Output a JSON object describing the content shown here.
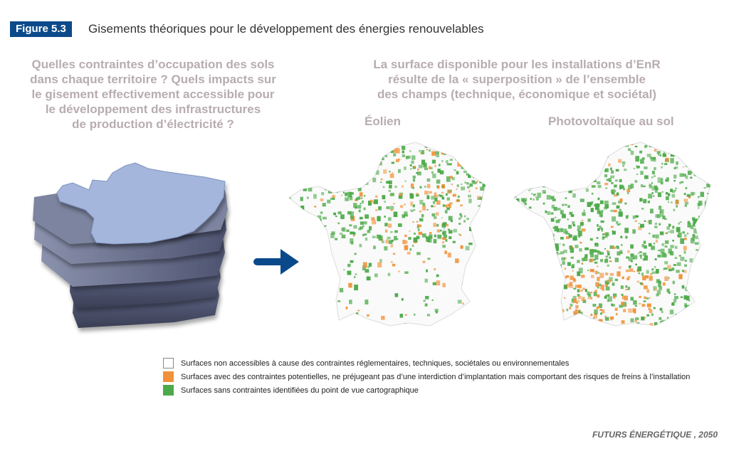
{
  "figure": {
    "badge": "Figure 5.3",
    "title": "Gisements théoriques pour le développement des énergies renouvelables"
  },
  "left_question": [
    "Quelles contraintes d’occupation des sols",
    "dans chaque territoire ? Quels impacts sur",
    "le gisement effectivement accessible pour",
    "le développement des infrastructures",
    "de production d’électricité ?"
  ],
  "right_statement": [
    "La surface disponible pour les installations d’EnR",
    "résulte de la « superposition » de l’ensemble",
    "des champs (technique, économique et sociétal)"
  ],
  "maps": {
    "eolien": {
      "label": "Éolien",
      "green_share": 0.22,
      "orange_share": 0.08
    },
    "pv": {
      "label": "Photovoltaïque au sol",
      "green_share": 0.48,
      "orange_share": 0.08
    }
  },
  "legend": [
    {
      "color": "#ffffff",
      "text": "Surfaces non accessibles à cause des contraintes réglementaires, techniques, sociétales ou environnementales"
    },
    {
      "color": "#f0923a",
      "text": "Surfaces avec des contraintes potentielles, ne préjugeant pas d’une interdiction d’implantation mais comportant des risques de freins à l’installation"
    },
    {
      "color": "#4caa48",
      "text": "Surfaces sans contraintes identifiées du point de vue cartographique"
    }
  ],
  "source": "FUTURS ÉNERGÉTIQUE , 2050",
  "colors": {
    "badge": "#0b4a8a",
    "arrow": "#0b4a8a",
    "heading": "#b8acb1",
    "layer_top": "#a4b6dc",
    "green": "#4caa48",
    "orange": "#f0923a"
  },
  "icons": {
    "arrow": "arrow-right-icon"
  }
}
